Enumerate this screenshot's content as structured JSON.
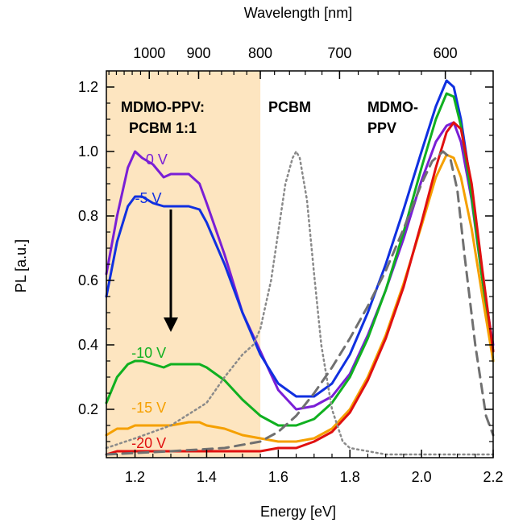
{
  "chart_data": {
    "type": "line",
    "xlabel": "Energy [eV]",
    "ylabel": "PL [a.u.]",
    "top_xlabel": "Wavelength [nm]",
    "xlim": [
      1.12,
      2.2
    ],
    "ylim": [
      0.05,
      1.25
    ],
    "x_ticks": [
      "1.2",
      "1.4",
      "1.6",
      "1.8",
      "2.0",
      "2.2"
    ],
    "y_ticks": [
      "0.2",
      "0.4",
      "0.6",
      "0.8",
      "1.0",
      "1.2"
    ],
    "top_ticks": [
      "1000",
      "900",
      "800",
      "700",
      "600"
    ],
    "shaded_region": {
      "x_from": 1.12,
      "x_to": 1.55,
      "color": "#fde5c0"
    },
    "region_labels": {
      "blend_line1": "MDMO-PPV:",
      "blend_line2": "PCBM 1:1",
      "pcbm": "PCBM",
      "mdmo_line1": "MDMO-",
      "mdmo_line2": "PPV"
    },
    "series": [
      {
        "label": "0 V",
        "color": "#7a1fd6",
        "style": "solid",
        "x": [
          1.12,
          1.15,
          1.18,
          1.2,
          1.22,
          1.25,
          1.28,
          1.3,
          1.35,
          1.38,
          1.4,
          1.45,
          1.5,
          1.55,
          1.6,
          1.65,
          1.7,
          1.75,
          1.8,
          1.85,
          1.9,
          1.95,
          2.0,
          2.04,
          2.07,
          2.09,
          2.11,
          2.14,
          2.17,
          2.2
        ],
        "y": [
          0.62,
          0.8,
          0.95,
          1.0,
          0.98,
          0.96,
          0.92,
          0.93,
          0.93,
          0.9,
          0.84,
          0.68,
          0.5,
          0.38,
          0.26,
          0.2,
          0.21,
          0.24,
          0.31,
          0.43,
          0.57,
          0.73,
          0.91,
          1.03,
          1.08,
          1.09,
          1.03,
          0.85,
          0.6,
          0.4
        ]
      },
      {
        "label": "-5 V",
        "color": "#1030e0",
        "style": "solid",
        "x": [
          1.12,
          1.15,
          1.18,
          1.2,
          1.22,
          1.25,
          1.28,
          1.3,
          1.35,
          1.38,
          1.4,
          1.45,
          1.5,
          1.55,
          1.6,
          1.65,
          1.7,
          1.75,
          1.8,
          1.85,
          1.9,
          1.95,
          2.0,
          2.04,
          2.07,
          2.09,
          2.11,
          2.14,
          2.17,
          2.2
        ],
        "y": [
          0.55,
          0.72,
          0.83,
          0.86,
          0.86,
          0.84,
          0.83,
          0.83,
          0.83,
          0.82,
          0.78,
          0.65,
          0.5,
          0.37,
          0.28,
          0.24,
          0.24,
          0.28,
          0.37,
          0.5,
          0.65,
          0.82,
          1.0,
          1.14,
          1.22,
          1.2,
          1.1,
          0.88,
          0.62,
          0.38
        ]
      },
      {
        "label": "-10 V",
        "color": "#10b020",
        "style": "solid",
        "x": [
          1.12,
          1.15,
          1.18,
          1.2,
          1.22,
          1.25,
          1.28,
          1.3,
          1.35,
          1.38,
          1.4,
          1.45,
          1.5,
          1.55,
          1.6,
          1.65,
          1.7,
          1.75,
          1.8,
          1.85,
          1.9,
          1.95,
          2.0,
          2.04,
          2.07,
          2.09,
          2.11,
          2.14,
          2.17,
          2.2
        ],
        "y": [
          0.22,
          0.3,
          0.34,
          0.35,
          0.35,
          0.34,
          0.33,
          0.34,
          0.34,
          0.34,
          0.33,
          0.29,
          0.23,
          0.18,
          0.15,
          0.15,
          0.17,
          0.22,
          0.3,
          0.42,
          0.57,
          0.75,
          0.95,
          1.1,
          1.18,
          1.17,
          1.08,
          0.86,
          0.6,
          0.35
        ]
      },
      {
        "label": "-15 V",
        "color": "#f5a000",
        "style": "solid",
        "x": [
          1.12,
          1.15,
          1.18,
          1.2,
          1.22,
          1.25,
          1.28,
          1.3,
          1.35,
          1.38,
          1.4,
          1.45,
          1.5,
          1.55,
          1.6,
          1.65,
          1.7,
          1.75,
          1.8,
          1.85,
          1.9,
          1.95,
          2.0,
          2.04,
          2.07,
          2.09,
          2.11,
          2.14,
          2.17,
          2.2
        ],
        "y": [
          0.12,
          0.14,
          0.14,
          0.15,
          0.15,
          0.15,
          0.15,
          0.15,
          0.16,
          0.16,
          0.15,
          0.14,
          0.12,
          0.11,
          0.1,
          0.1,
          0.11,
          0.14,
          0.2,
          0.3,
          0.43,
          0.59,
          0.77,
          0.92,
          0.99,
          0.98,
          0.92,
          0.76,
          0.55,
          0.35
        ]
      },
      {
        "label": "-20 V",
        "color": "#e01010",
        "style": "solid",
        "x": [
          1.12,
          1.15,
          1.18,
          1.2,
          1.22,
          1.25,
          1.28,
          1.3,
          1.35,
          1.38,
          1.4,
          1.45,
          1.5,
          1.55,
          1.6,
          1.65,
          1.7,
          1.75,
          1.8,
          1.85,
          1.9,
          1.95,
          2.0,
          2.04,
          2.07,
          2.09,
          2.11,
          2.14,
          2.17,
          2.2
        ],
        "y": [
          0.06,
          0.07,
          0.07,
          0.07,
          0.07,
          0.07,
          0.07,
          0.07,
          0.07,
          0.07,
          0.07,
          0.07,
          0.07,
          0.07,
          0.08,
          0.08,
          0.1,
          0.13,
          0.19,
          0.29,
          0.42,
          0.58,
          0.78,
          0.95,
          1.06,
          1.09,
          1.07,
          0.9,
          0.63,
          0.38
        ]
      },
      {
        "label": "PCBM",
        "color": "#8a8a8a",
        "style": "dotted",
        "x": [
          1.12,
          1.2,
          1.3,
          1.4,
          1.45,
          1.5,
          1.53,
          1.55,
          1.58,
          1.6,
          1.62,
          1.64,
          1.65,
          1.66,
          1.68,
          1.7,
          1.72,
          1.75,
          1.78,
          1.8,
          1.85,
          1.9,
          2.0,
          2.2
        ],
        "y": [
          0.08,
          0.11,
          0.15,
          0.22,
          0.3,
          0.37,
          0.4,
          0.45,
          0.6,
          0.75,
          0.9,
          0.98,
          1.0,
          0.98,
          0.85,
          0.62,
          0.4,
          0.2,
          0.1,
          0.08,
          0.07,
          0.06,
          0.06,
          0.06
        ]
      },
      {
        "label": "MDMO-PPV",
        "color": "#707070",
        "style": "dashed",
        "x": [
          1.12,
          1.3,
          1.45,
          1.55,
          1.6,
          1.65,
          1.7,
          1.75,
          1.8,
          1.85,
          1.9,
          1.95,
          2.0,
          2.03,
          2.06,
          2.08,
          2.1,
          2.12,
          2.15,
          2.18,
          2.2
        ],
        "y": [
          0.06,
          0.07,
          0.08,
          0.1,
          0.13,
          0.18,
          0.25,
          0.33,
          0.42,
          0.52,
          0.63,
          0.76,
          0.9,
          0.97,
          1.0,
          0.98,
          0.88,
          0.68,
          0.4,
          0.18,
          0.12
        ]
      }
    ],
    "curve_labels": [
      {
        "text": "0 V",
        "color": "#7a1fd6",
        "x": 1.23,
        "y": 0.96
      },
      {
        "text": "-5 V",
        "color": "#1030e0",
        "x": 1.2,
        "y": 0.84
      },
      {
        "text": "-10 V",
        "color": "#10b020",
        "x": 1.19,
        "y": 0.36
      },
      {
        "text": "-15 V",
        "color": "#f5a000",
        "x": 1.19,
        "y": 0.19
      },
      {
        "text": "-20 V",
        "color": "#e01010",
        "x": 1.19,
        "y": 0.08
      }
    ],
    "arrow": {
      "x": 1.3,
      "y_from": 0.82,
      "y_to": 0.44
    }
  }
}
